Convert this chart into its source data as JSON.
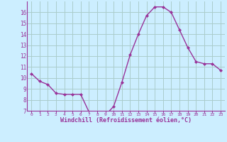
{
  "x": [
    0,
    1,
    2,
    3,
    4,
    5,
    6,
    7,
    8,
    9,
    10,
    11,
    12,
    13,
    14,
    15,
    16,
    17,
    18,
    19,
    20,
    21,
    22,
    23
  ],
  "y": [
    10.4,
    9.7,
    9.4,
    8.6,
    8.5,
    8.5,
    8.5,
    6.9,
    6.8,
    6.6,
    7.4,
    9.6,
    12.1,
    14.0,
    15.7,
    16.5,
    16.5,
    16.0,
    14.4,
    12.8,
    11.5,
    11.3,
    11.3,
    10.7
  ],
  "line_color": "#993399",
  "marker": "D",
  "marker_size": 2,
  "bg_color": "#cceeff",
  "grid_color": "#aacccc",
  "xlabel": "Windchill (Refroidissement éolien,°C)",
  "xlabel_color": "#993399",
  "tick_color": "#993399",
  "spine_color": "#993399",
  "ylim": [
    7,
    17
  ],
  "xlim": [
    -0.5,
    23.5
  ],
  "yticks": [
    7,
    8,
    9,
    10,
    11,
    12,
    13,
    14,
    15,
    16
  ],
  "xticks": [
    0,
    1,
    2,
    3,
    4,
    5,
    6,
    7,
    8,
    9,
    10,
    11,
    12,
    13,
    14,
    15,
    16,
    17,
    18,
    19,
    20,
    21,
    22,
    23
  ]
}
